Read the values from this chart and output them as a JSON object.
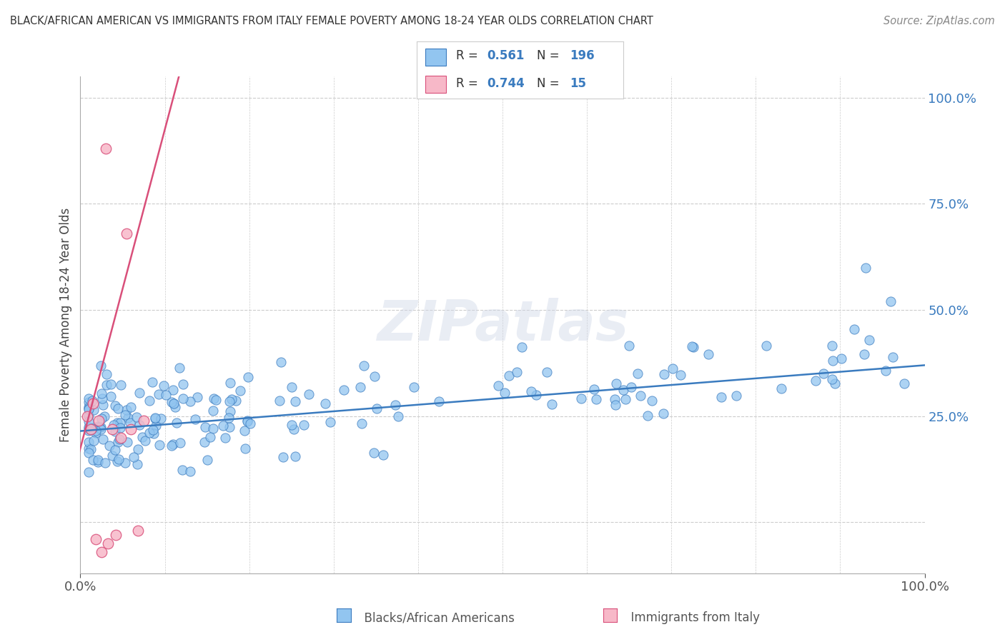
{
  "title": "BLACK/AFRICAN AMERICAN VS IMMIGRANTS FROM ITALY FEMALE POVERTY AMONG 18-24 YEAR OLDS CORRELATION CHART",
  "source": "Source: ZipAtlas.com",
  "ylabel": "Female Poverty Among 18-24 Year Olds",
  "blue_R": "0.561",
  "blue_N": "196",
  "pink_R": "0.744",
  "pink_N": "15",
  "blue_color": "#92c5f0",
  "pink_color": "#f7b8c8",
  "blue_line_color": "#3a7bbf",
  "pink_line_color": "#d94f7a",
  "blue_slope": 0.155,
  "blue_intercept": 0.215,
  "pink_slope": 7.5,
  "pink_intercept": 0.175,
  "watermark": "ZIPatlas",
  "background_color": "#ffffff",
  "grid_color": "#cccccc",
  "legend_box_color": "#f5f5f5",
  "legend_border_color": "#cccccc",
  "x_min": 0.0,
  "x_max": 1.0,
  "y_min": -0.12,
  "y_max": 1.05,
  "ytick_positions": [
    0.0,
    0.25,
    0.5,
    0.75,
    1.0
  ],
  "ytick_labels": [
    "",
    "25.0%",
    "50.0%",
    "75.0%",
    "100.0%"
  ],
  "xtick_positions": [
    0.0,
    1.0
  ],
  "xtick_labels": [
    "0.0%",
    "100.0%"
  ],
  "bottom_legend_blue_label": "Blacks/African Americans",
  "bottom_legend_pink_label": "Immigrants from Italy"
}
